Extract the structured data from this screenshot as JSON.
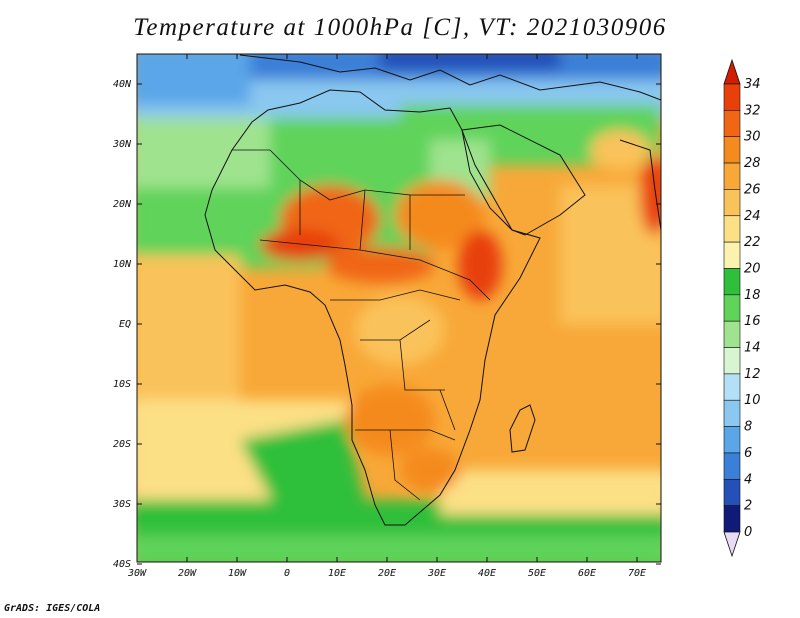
{
  "title": "Temperature at 1000hPa [C], VT: 2021030906",
  "footer": "GrADS: IGES/COLA",
  "map": {
    "lon_ticks": [
      "30W",
      "20W",
      "10W",
      "0",
      "10E",
      "20E",
      "30E",
      "40E",
      "50E",
      "60E",
      "70E"
    ],
    "lat_ticks": [
      "40N",
      "30N",
      "20N",
      "10N",
      "EQ",
      "10S",
      "20S",
      "30S",
      "40S"
    ],
    "lon_range": [
      -30,
      75
    ],
    "lat_range": [
      -40,
      45
    ]
  },
  "colorbar": {
    "labels": [
      "34",
      "32",
      "30",
      "28",
      "26",
      "24",
      "22",
      "20",
      "18",
      "16",
      "14",
      "12",
      "10",
      "8",
      "6",
      "4",
      "2",
      "0"
    ],
    "colors": [
      "#d21e00",
      "#e8400a",
      "#f06614",
      "#f58a1e",
      "#f8a838",
      "#fac25a",
      "#fce086",
      "#fcf2b0",
      "#2fbf3a",
      "#5fd35a",
      "#9fe38f",
      "#d6f5d0",
      "#b4e0f6",
      "#8ac8f0",
      "#5aa6e8",
      "#3a7fd8",
      "#2450b8",
      "#101a78",
      "#e6dcf6"
    ]
  }
}
